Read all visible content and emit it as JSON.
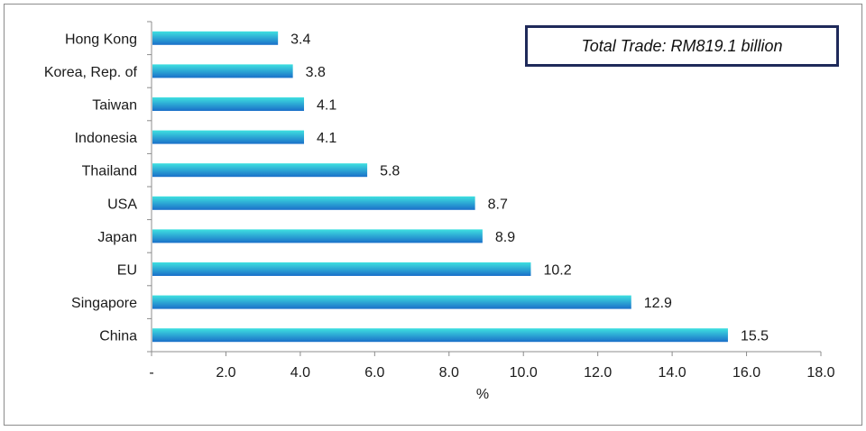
{
  "chart_data": {
    "type": "bar",
    "orientation": "horizontal",
    "categories": [
      "Hong Kong",
      "Korea, Rep. of",
      "Taiwan",
      "Indonesia",
      "Thailand",
      "USA",
      "Japan",
      "EU",
      "Singapore",
      "China"
    ],
    "values": [
      3.4,
      3.8,
      4.1,
      4.1,
      5.8,
      8.7,
      8.9,
      10.2,
      12.9,
      15.5
    ],
    "value_labels": [
      "3.4",
      "3.8",
      "4.1",
      "4.1",
      "5.8",
      "8.7",
      "8.9",
      "10.2",
      "12.9",
      "15.5"
    ],
    "xlabel": "%",
    "ylabel": "",
    "xlim": [
      0,
      18
    ],
    "x_ticks": [
      0,
      2,
      4,
      6,
      8,
      10,
      12,
      14,
      16,
      18
    ],
    "x_tick_labels": [
      "-",
      "2.0",
      "4.0",
      "6.0",
      "8.0",
      "10.0",
      "12.0",
      "14.0",
      "16.0",
      "18.0"
    ],
    "annotation": "Total Trade: RM819.1 billion",
    "grid": false,
    "colors": {
      "bar_top": "#3ee0e0",
      "bar_bottom": "#1a6fc9",
      "axis": "#8c8c8c",
      "callout_border": "#1f2a5a"
    }
  }
}
